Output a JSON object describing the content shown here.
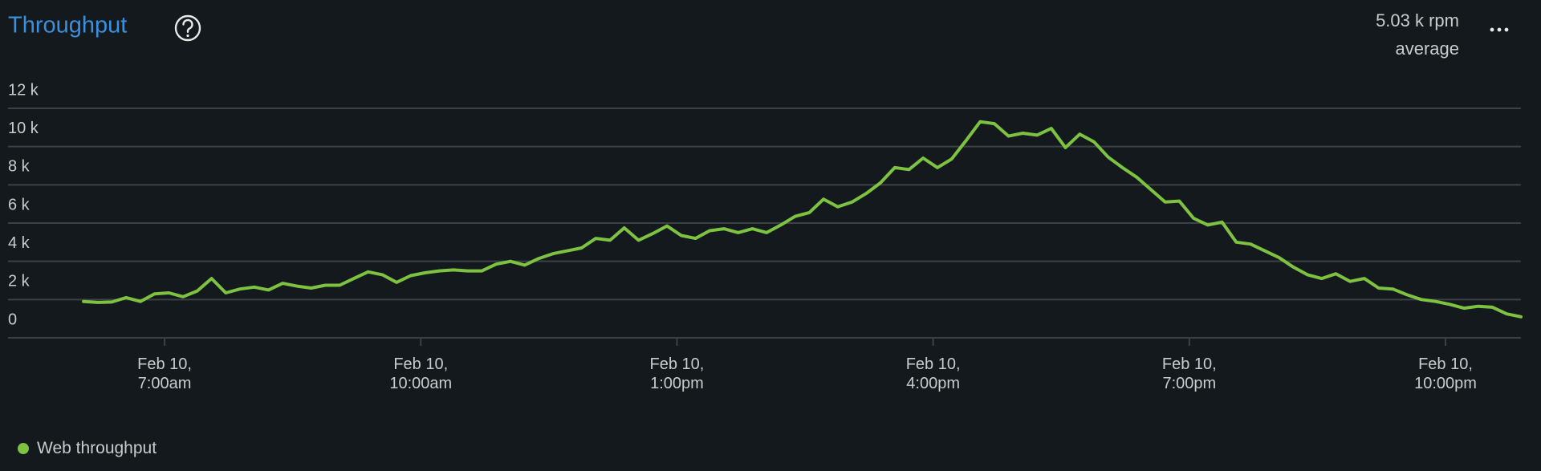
{
  "chart_data": {
    "type": "line",
    "title": "Throughput",
    "summary": {
      "value": "5.03 k rpm",
      "label": "average"
    },
    "x": [
      "06:03",
      "06:13",
      "06:23",
      "06:33",
      "06:43",
      "06:53",
      "07:03",
      "07:13",
      "07:23",
      "07:33",
      "07:43",
      "07:53",
      "08:03",
      "08:13",
      "08:23",
      "08:33",
      "08:43",
      "08:53",
      "09:03",
      "09:13",
      "09:23",
      "09:33",
      "09:43",
      "09:53",
      "10:03",
      "10:13",
      "10:23",
      "10:33",
      "10:43",
      "10:53",
      "11:03",
      "11:13",
      "11:23",
      "11:33",
      "11:43",
      "11:53",
      "12:03",
      "12:13",
      "12:23",
      "12:33",
      "12:43",
      "12:53",
      "13:03",
      "13:13",
      "13:23",
      "13:33",
      "13:43",
      "13:53",
      "14:03",
      "14:13",
      "14:23",
      "14:33",
      "14:43",
      "14:53",
      "15:03",
      "15:13",
      "15:23",
      "15:33",
      "15:43",
      "15:53",
      "16:03",
      "16:13",
      "16:23",
      "16:33",
      "16:43",
      "16:53",
      "17:03",
      "17:13",
      "17:23",
      "17:33",
      "17:43",
      "17:53",
      "18:03",
      "18:13",
      "18:23",
      "18:33",
      "18:43",
      "18:53",
      "19:03",
      "19:13",
      "19:23",
      "19:33",
      "19:43",
      "19:53",
      "20:03",
      "20:13",
      "20:23",
      "20:33",
      "20:43",
      "20:53",
      "21:03",
      "21:13",
      "21:23",
      "21:33",
      "21:43",
      "21:53",
      "22:03",
      "22:13",
      "22:23",
      "22:33",
      "22:43",
      "22:53"
    ],
    "series": [
      {
        "name": "Web throughput",
        "color": "#7dc241",
        "values": [
          1900,
          1850,
          1870,
          2100,
          1900,
          2300,
          2350,
          2150,
          2450,
          3100,
          2350,
          2550,
          2650,
          2500,
          2850,
          2700,
          2600,
          2750,
          2750,
          3100,
          3450,
          3300,
          2900,
          3250,
          3400,
          3500,
          3550,
          3500,
          3500,
          3850,
          4000,
          3800,
          4150,
          4400,
          4550,
          4700,
          5200,
          5100,
          5750,
          5100,
          5450,
          5850,
          5350,
          5200,
          5600,
          5700,
          5500,
          5700,
          5500,
          5900,
          6350,
          6550,
          7250,
          6850,
          7100,
          7550,
          8100,
          8900,
          8800,
          9400,
          8900,
          9350,
          10300,
          11300,
          11200,
          10550,
          10700,
          10600,
          10950,
          9950,
          10650,
          10250,
          9450,
          8900,
          8400,
          7750,
          7100,
          7150,
          6250,
          5900,
          6050,
          5000,
          4900,
          4550,
          4200,
          3700,
          3300,
          3100,
          3350,
          2950,
          3100,
          2600,
          2550,
          2250,
          2000,
          1900,
          1750,
          1550,
          1650,
          1600,
          1250,
          1100
        ]
      }
    ],
    "xlim": [
      "05:10",
      "22:53"
    ],
    "xticks": [
      {
        "value": "07:00",
        "label": "Feb 10,\n7:00am"
      },
      {
        "value": "10:00",
        "label": "Feb 10,\n10:00am"
      },
      {
        "value": "13:00",
        "label": "Feb 10,\n1:00pm"
      },
      {
        "value": "16:00",
        "label": "Feb 10,\n4:00pm"
      },
      {
        "value": "19:00",
        "label": "Feb 10,\n7:00pm"
      },
      {
        "value": "22:00",
        "label": "Feb 10,\n10:00pm"
      }
    ],
    "ylim": [
      0,
      12000
    ],
    "yticks": [
      {
        "value": 0,
        "label": "0"
      },
      {
        "value": 2000,
        "label": "2 k"
      },
      {
        "value": 4000,
        "label": "4 k"
      },
      {
        "value": 6000,
        "label": "6 k"
      },
      {
        "value": 8000,
        "label": "8 k"
      },
      {
        "value": 10000,
        "label": "10 k"
      },
      {
        "value": 12000,
        "label": "12 k"
      }
    ],
    "grid": true,
    "title_color": "#3b8fdd",
    "grid_color": "#3b4144"
  }
}
